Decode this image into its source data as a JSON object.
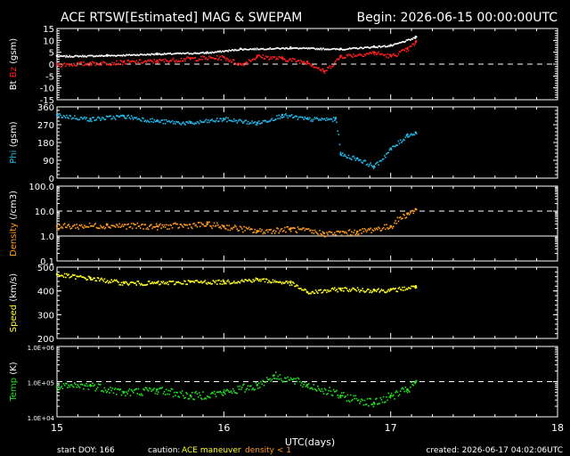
{
  "chart_data": {
    "type": "scatter",
    "title": "ACE RTSW[Estimated] MAG & SWEPAM",
    "begin_label": "Begin: 2026-06-15 00:00:00UTC",
    "xlabel": "UTC(days)",
    "x_ticks": [
      "15",
      "16",
      "17",
      "18"
    ],
    "xlim": [
      15,
      18
    ],
    "footer": {
      "start_doy": "start DOY: 166",
      "caution": "caution:",
      "maneuver": "ACE maneuver",
      "density_note": "density < 1",
      "created": "created: 2026-06-17 04:02:06UTC"
    },
    "colors": {
      "bt": "#ffffff",
      "bz": "#ff2020",
      "phi": "#20b8e8",
      "density": "#ff9a20",
      "speed": "#ffff20",
      "temp": "#20e020",
      "maneuver": "#ffff20",
      "density_note": "#ff9a20"
    },
    "panels": [
      {
        "id": "mag",
        "ylabel_bt": "Bt",
        "ylabel_bz": "Bz",
        "ylabel_unit": "(gsm)",
        "ylim": [
          -15,
          15
        ],
        "yticks": [
          "15",
          "10",
          "5",
          "0",
          "-5",
          "-10",
          "-15"
        ],
        "dashed_at": 0,
        "series": [
          {
            "name": "Bt",
            "x": [
              15.0,
              15.3,
              15.6,
              15.9,
              16.1,
              16.4,
              16.7,
              16.9,
              17.0,
              17.15
            ],
            "y": [
              3.5,
              3.8,
              4.5,
              5.0,
              6.5,
              7.0,
              6.5,
              7.5,
              8.0,
              11.5
            ]
          },
          {
            "name": "Bz",
            "x": [
              15.0,
              15.2,
              15.4,
              15.6,
              15.8,
              16.0,
              16.1,
              16.2,
              16.35,
              16.5,
              16.6,
              16.7,
              16.9,
              17.0,
              17.1,
              17.15
            ],
            "y": [
              0.0,
              0.5,
              1.0,
              1.5,
              2.5,
              3.0,
              0.0,
              3.5,
              2.5,
              1.0,
              -3.0,
              3.5,
              5.0,
              3.5,
              6.5,
              9.5
            ]
          }
        ]
      },
      {
        "id": "phi",
        "ylabel": "Phi",
        "ylabel_unit": "(gsm)",
        "ylim": [
          0,
          360
        ],
        "yticks": [
          "360",
          "270",
          "180",
          "90",
          "0"
        ],
        "series": [
          {
            "name": "Phi",
            "x": [
              15.0,
              15.2,
              15.4,
              15.6,
              15.8,
              16.0,
              16.2,
              16.35,
              16.5,
              16.67,
              16.7,
              16.8,
              16.9,
              17.0,
              17.1,
              17.15
            ],
            "y": [
              320,
              300,
              315,
              290,
              280,
              300,
              280,
              320,
              300,
              300,
              120,
              100,
              60,
              150,
              220,
              230
            ]
          }
        ]
      },
      {
        "id": "density",
        "ylabel": "Density",
        "ylabel_unit": "(/cm3)",
        "ylim": [
          0.1,
          100
        ],
        "log": true,
        "yticks": [
          "100.0",
          "10.0",
          "1.0",
          "0.1"
        ],
        "dashed_at": 10,
        "solid_at": 1,
        "series": [
          {
            "name": "Density",
            "x": [
              15.0,
              15.3,
              15.6,
              15.9,
              16.0,
              16.2,
              16.4,
              16.6,
              16.8,
              17.0,
              17.1,
              17.15
            ],
            "y": [
              2.5,
              2.8,
              2.5,
              3.0,
              2.5,
              1.6,
              2.0,
              1.3,
              1.5,
              2.5,
              8.0,
              12.0
            ]
          }
        ]
      },
      {
        "id": "speed",
        "ylabel": "Speed",
        "ylabel_unit": "(km/s)",
        "ylim": [
          200,
          500
        ],
        "yticks": [
          "500",
          "400",
          "300",
          "200"
        ],
        "series": [
          {
            "name": "Speed",
            "x": [
              15.0,
              15.2,
              15.4,
              15.6,
              15.8,
              16.0,
              16.2,
              16.4,
              16.5,
              16.7,
              16.9,
              17.0,
              17.15
            ],
            "y": [
              470,
              455,
              435,
              435,
              440,
              440,
              450,
              435,
              395,
              410,
              405,
              405,
              420
            ]
          }
        ]
      },
      {
        "id": "temp",
        "ylabel": "Temp",
        "ylabel_unit": "(K)",
        "ylim": [
          10000,
          1000000
        ],
        "log": true,
        "yticks": [
          "1.0E+06",
          "1.0E+05",
          "1.0E+04"
        ],
        "dashed_at": 100000,
        "series": [
          {
            "name": "Temp",
            "x": [
              15.0,
              15.2,
              15.4,
              15.6,
              15.8,
              16.0,
              16.2,
              16.3,
              16.5,
              16.7,
              16.9,
              17.0,
              17.1,
              17.15
            ],
            "y": [
              70000,
              80000,
              50000,
              60000,
              40000,
              50000,
              80000,
              150000,
              80000,
              40000,
              25000,
              40000,
              60000,
              100000
            ]
          }
        ]
      }
    ]
  }
}
